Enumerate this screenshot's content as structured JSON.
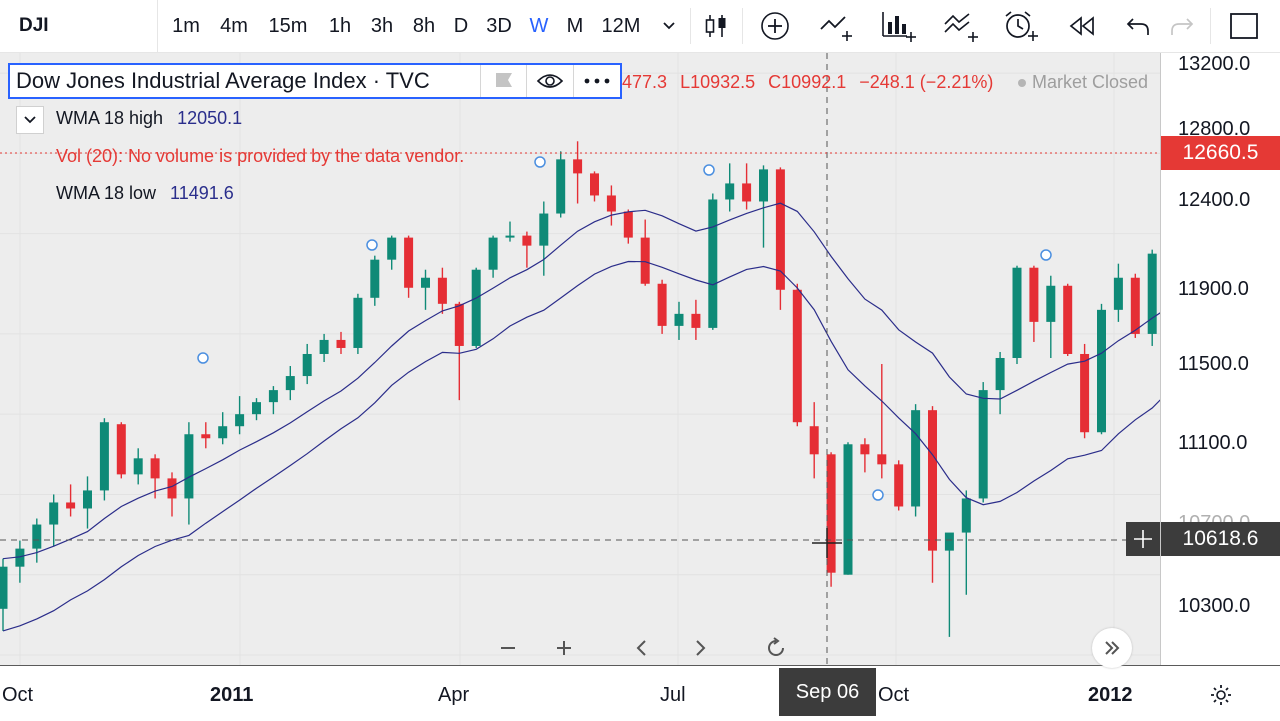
{
  "toolbar": {
    "symbol": "DJI",
    "timeframes": [
      "1m",
      "4m",
      "15m",
      "1h",
      "3h",
      "8h",
      "D",
      "3D",
      "W",
      "M",
      "12M"
    ],
    "active_timeframe": "W",
    "icons": [
      "chevron-down-icon",
      "candles-icon",
      "plus-circle-icon",
      "compare-icon",
      "indicators-icon",
      "templates-icon",
      "alert-icon",
      "replay-icon",
      "undo-icon",
      "redo-icon",
      "fullscreen-icon"
    ]
  },
  "legend": {
    "title": "Dow Jones Industrial Average Index · TVC",
    "ohlc_partial": "477.3",
    "low": "L10932.5",
    "close": "C10992.1",
    "change": "−248.1 (−2.21%)",
    "market_status": "Market Closed",
    "studies": [
      {
        "label": "WMA 18 high",
        "value": "12050.1"
      },
      {
        "label": "Vol (20): No volume is provided by the data vendor.",
        "value": ""
      },
      {
        "label": "WMA 18 low",
        "value": "11491.6"
      }
    ]
  },
  "price_axis": {
    "labels": [
      "13200.0",
      "12800.0",
      "12400.0",
      "11900.0",
      "11500.0",
      "11100.0",
      "10700.0",
      "10300.0"
    ],
    "last_price": "12660.5",
    "crosshair_price": "10618.6"
  },
  "time_axis": {
    "labels": [
      "Oct",
      "2011",
      "Apr",
      "Jul",
      "Oct",
      "2012"
    ],
    "crosshair_date": "Sep 06"
  },
  "colors": {
    "up": "#0f8a77",
    "down": "#e52e35",
    "wma": "#2b2d8a",
    "last_price_bg": "#e53935",
    "crosshair_bg": "#3c3c3c",
    "active": "#2962ff"
  },
  "chart_data": {
    "type": "candlestick",
    "ylim": [
      10250,
      13300
    ],
    "ohlc_weekly_from_2010_09": [
      [
        10530,
        10780,
        10420,
        10740
      ],
      [
        10740,
        10870,
        10660,
        10830
      ],
      [
        10830,
        10980,
        10760,
        10950
      ],
      [
        10950,
        11100,
        10840,
        11060
      ],
      [
        11060,
        11150,
        10990,
        11030
      ],
      [
        11030,
        11190,
        10930,
        11120
      ],
      [
        11120,
        11480,
        11070,
        11460
      ],
      [
        11450,
        11460,
        11180,
        11200
      ],
      [
        11200,
        11330,
        11150,
        11280
      ],
      [
        11280,
        11300,
        11080,
        11180
      ],
      [
        11180,
        11210,
        10990,
        11080
      ],
      [
        11080,
        11460,
        10950,
        11400
      ],
      [
        11400,
        11460,
        11330,
        11380
      ],
      [
        11380,
        11510,
        11350,
        11440
      ],
      [
        11440,
        11590,
        11400,
        11500
      ],
      [
        11500,
        11580,
        11470,
        11560
      ],
      [
        11560,
        11640,
        11500,
        11620
      ],
      [
        11620,
        11740,
        11570,
        11690
      ],
      [
        11690,
        11850,
        11650,
        11800
      ],
      [
        11800,
        11900,
        11760,
        11870
      ],
      [
        11870,
        11910,
        11800,
        11830
      ],
      [
        11830,
        12100,
        11800,
        12080
      ],
      [
        12080,
        12290,
        12040,
        12270
      ],
      [
        12270,
        12390,
        12220,
        12380
      ],
      [
        12380,
        12390,
        12080,
        12130
      ],
      [
        12130,
        12220,
        12020,
        12180
      ],
      [
        12180,
        12230,
        12000,
        12050
      ],
      [
        12050,
        12060,
        11570,
        11840
      ],
      [
        11840,
        12230,
        11830,
        12220
      ],
      [
        12220,
        12390,
        12180,
        12380
      ],
      [
        12380,
        12460,
        12360,
        12390
      ],
      [
        12390,
        12410,
        12230,
        12340
      ],
      [
        12340,
        12560,
        12190,
        12500
      ],
      [
        12500,
        12810,
        12480,
        12770
      ],
      [
        12770,
        12860,
        12550,
        12700
      ],
      [
        12700,
        12710,
        12560,
        12590
      ],
      [
        12590,
        12640,
        12440,
        12510
      ],
      [
        12510,
        12520,
        12350,
        12380
      ],
      [
        12380,
        12470,
        12140,
        12150
      ],
      [
        12150,
        12170,
        11900,
        11940
      ],
      [
        11940,
        12060,
        11870,
        12000
      ],
      [
        12000,
        12070,
        11870,
        11930
      ],
      [
        11930,
        12600,
        11920,
        12570
      ],
      [
        12570,
        12750,
        12510,
        12650
      ],
      [
        12650,
        12750,
        12520,
        12560
      ],
      [
        12560,
        12740,
        12330,
        12720
      ],
      [
        12720,
        12730,
        12020,
        12120
      ],
      [
        12120,
        12150,
        11440,
        11460
      ],
      [
        11440,
        11560,
        11180,
        11300
      ],
      [
        11300,
        11310,
        10640,
        10710
      ],
      [
        10700,
        11360,
        10700,
        11350
      ],
      [
        11350,
        11380,
        11210,
        11300
      ],
      [
        11300,
        11750,
        11180,
        11250
      ],
      [
        11250,
        11270,
        11020,
        11040
      ],
      [
        11040,
        11550,
        10990,
        11520
      ],
      [
        11520,
        11540,
        10660,
        10820
      ],
      [
        10820,
        10880,
        10390,
        10910
      ],
      [
        10910,
        11120,
        10600,
        11080
      ],
      [
        11080,
        11660,
        11060,
        11620
      ],
      [
        11620,
        11810,
        11500,
        11780
      ],
      [
        11780,
        12240,
        11750,
        12230
      ],
      [
        12230,
        12240,
        11860,
        11960
      ],
      [
        11960,
        12190,
        11780,
        12140
      ],
      [
        12140,
        12150,
        11790,
        11800
      ],
      [
        11800,
        11850,
        11380,
        11410
      ],
      [
        11410,
        12050,
        11400,
        12020
      ],
      [
        12020,
        12250,
        11960,
        12180
      ],
      [
        12180,
        12200,
        11880,
        11900
      ],
      [
        11900,
        12320,
        11840,
        12300
      ],
      [
        12300,
        12330,
        12150,
        12190
      ],
      [
        12190,
        12350,
        12120,
        12310
      ],
      [
        12310,
        12450,
        12240,
        12420
      ],
      [
        12420,
        12500,
        12300,
        12360
      ],
      [
        12360,
        12720,
        12350,
        12700
      ]
    ]
  }
}
